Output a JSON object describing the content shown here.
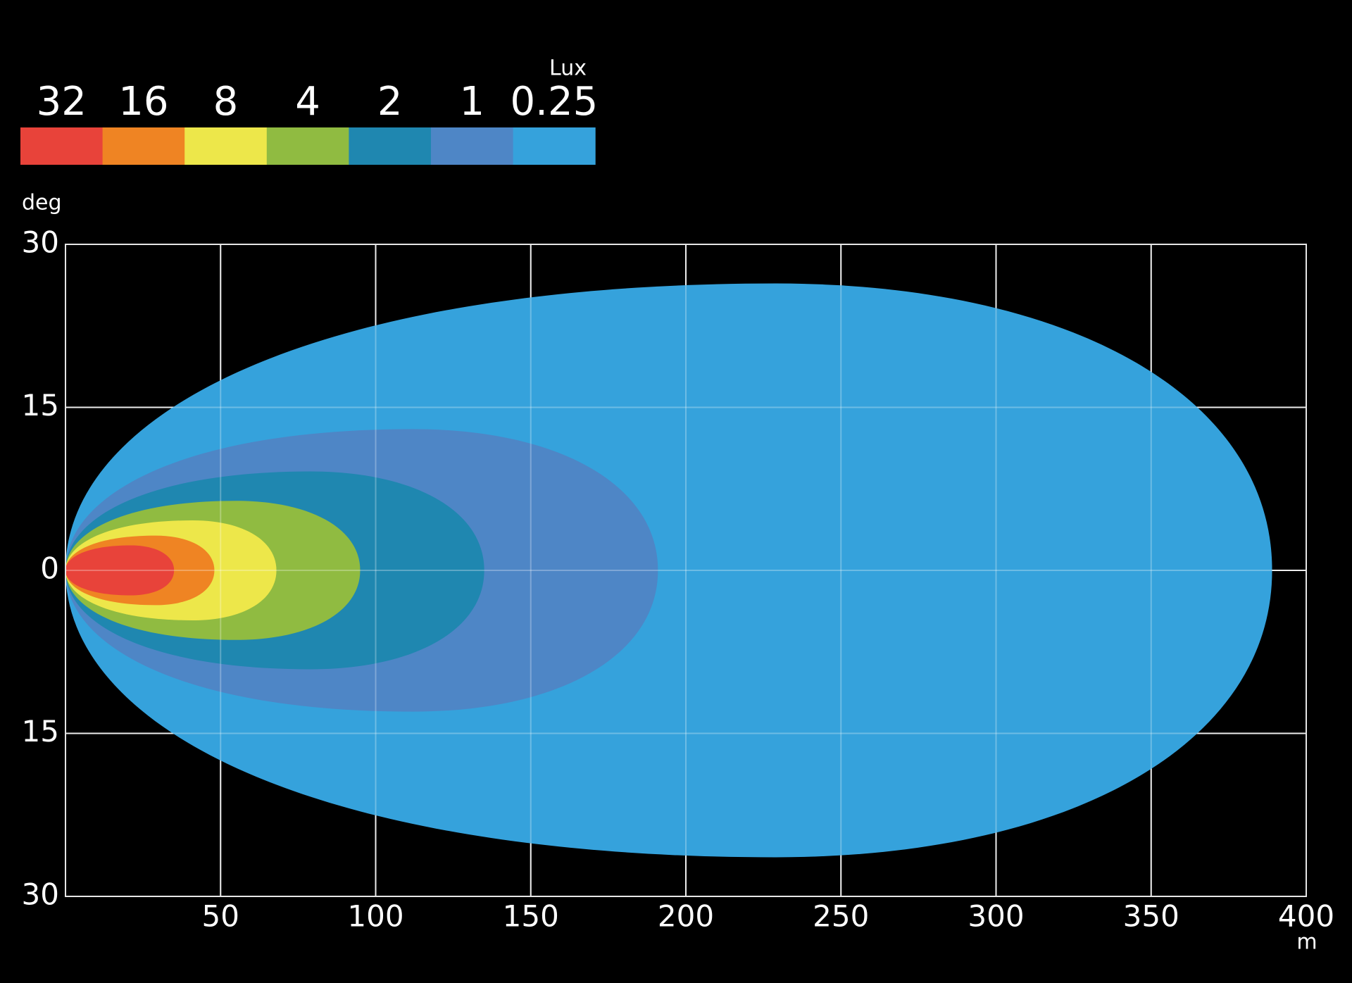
{
  "chart_data": {
    "type": "isolux",
    "legend_title": "Lux",
    "ylabel": "deg",
    "xlabel": "m",
    "xlim": [
      0,
      400
    ],
    "xticks": [
      50,
      100,
      150,
      200,
      250,
      300,
      350,
      400
    ],
    "ylim": [
      -30,
      30
    ],
    "yticks": [
      30,
      15,
      0,
      {
        "value": -15,
        "label": "15"
      },
      {
        "value": -30,
        "label": "30"
      }
    ],
    "grid": true,
    "series": [
      {
        "name": "32",
        "color": "#e8433a",
        "reach": 35,
        "half_width": 2.3,
        "peak_at": 21
      },
      {
        "name": "16",
        "color": "#ef8423",
        "reach": 48,
        "half_width": 3.2,
        "peak_at": 29
      },
      {
        "name": "8",
        "color": "#ede74a",
        "reach": 68,
        "half_width": 4.6,
        "peak_at": 41
      },
      {
        "name": "4",
        "color": "#90bb41",
        "reach": 95,
        "half_width": 6.4,
        "peak_at": 55
      },
      {
        "name": "2",
        "color": "#1f87b0",
        "reach": 135,
        "half_width": 9.1,
        "peak_at": 79
      },
      {
        "name": "1",
        "color": "#4e86c6",
        "reach": 191,
        "half_width": 13,
        "peak_at": 112
      },
      {
        "name": "0.25",
        "color": "#35a2dc",
        "reach": 389,
        "half_width": 26.4,
        "peak_at": 229
      }
    ]
  }
}
